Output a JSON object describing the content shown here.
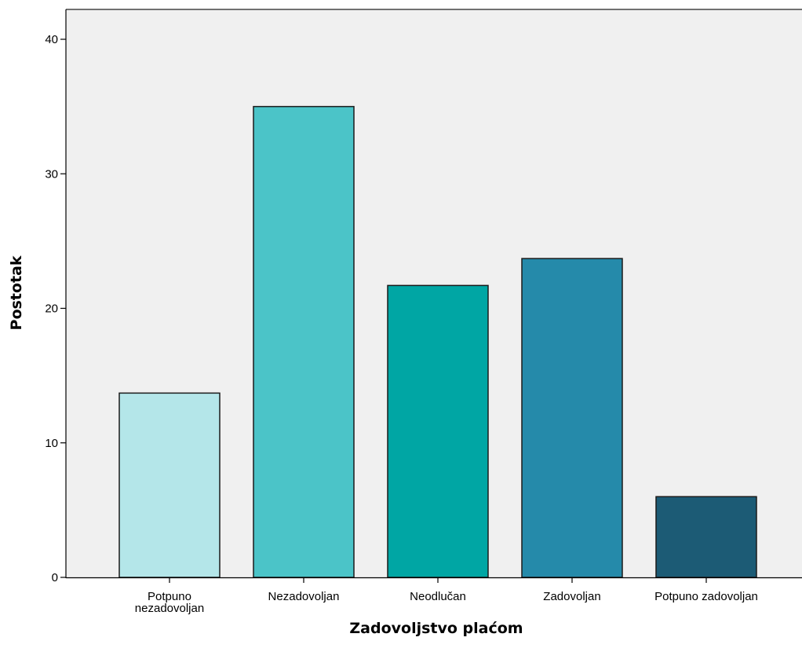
{
  "chart_data": {
    "type": "bar",
    "xlabel": "Zadovoljstvo plaćom",
    "ylabel": "Postotak",
    "ylim": [
      0,
      42
    ],
    "yticks": [
      0,
      10,
      20,
      30,
      40
    ],
    "grid": false,
    "categories": [
      [
        "Potpuno",
        "nezadovoljan"
      ],
      [
        "Nezadovoljan"
      ],
      [
        "Neodlučan"
      ],
      [
        "Zadovoljan"
      ],
      [
        "Potpuno zadovoljan"
      ]
    ],
    "values": [
      13.7,
      35.0,
      21.7,
      23.7,
      6.0
    ],
    "colors": [
      "#b4e6e9",
      "#4bc4c8",
      "#00a6a4",
      "#258aaa",
      "#1c5b75"
    ],
    "plot_background": "#f0f0f0",
    "bar_edge_color": "#1a1a1a"
  }
}
